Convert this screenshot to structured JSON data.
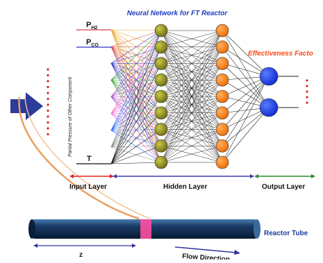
{
  "title": "Neural Network for FT Reactor",
  "inputs": {
    "p_h2": {
      "main": "P",
      "sub": "H2"
    },
    "p_co": {
      "main": "P",
      "sub": "CO"
    },
    "t": "T",
    "side_label": "Partial Pressure of Other Component"
  },
  "output_label": "Effectiveness Facto",
  "layers": {
    "input": "Input Layer",
    "hidden": "Hidden Layer",
    "output": "Output Layer"
  },
  "reactor": {
    "label": "Reactor Tube",
    "z_label": "z",
    "flow_label": "Flow Direction"
  },
  "colors": {
    "title": "#1f3fbf",
    "hidden1": "#8a8a1e",
    "hidden2": "#ff7a1a",
    "output": "#1a3cf0",
    "dots": "#e02020",
    "arrow": "#2d3b9a",
    "tube": "#0f2a4a",
    "band": "#ff4fa0",
    "input_arrow": "#e02020",
    "hidden_arrow": "#3b3bb0",
    "output_arrow": "#2a8a2a",
    "edge": "#222222",
    "curve": "#e8a060"
  },
  "network": {
    "hidden1_nodes": 9,
    "hidden2_nodes": 9,
    "output_nodes": 2
  }
}
